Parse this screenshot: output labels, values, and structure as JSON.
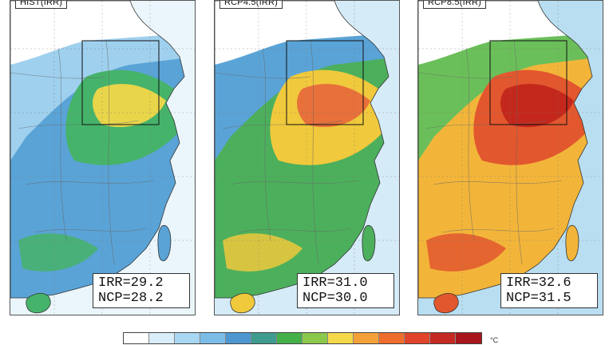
{
  "panels": [
    {
      "title": "HIST(IRR)",
      "irr_label": "IRR=29.2",
      "ncp_label": "NCP=28.2",
      "palette": {
        "ocean": "#d9eefa",
        "low": "#9fd0ee",
        "mid": "#5aa3d6",
        "high": "#46b36a",
        "hot": "#e9d54a"
      }
    },
    {
      "title": "RCP4.5(IRR)",
      "irr_label": "IRR=31.0",
      "ncp_label": "NCP=30.0",
      "palette": {
        "ocean": "#b3daf2",
        "low": "#5aa3d6",
        "mid": "#4caf5c",
        "high": "#f0c93c",
        "hot": "#e8703a"
      }
    },
    {
      "title": "RCP8.5(IRR)",
      "irr_label": "IRR=32.6",
      "ncp_label": "NCP=31.5",
      "palette": {
        "ocean": "#7fc2e6",
        "low": "#6bbf5a",
        "mid": "#f2b53a",
        "high": "#e2572e",
        "hot": "#c4281c"
      }
    }
  ],
  "colorbar": {
    "colors": [
      "#ffffff",
      "#d9eefa",
      "#a9d6f2",
      "#7cbde8",
      "#4d97d1",
      "#3f9a8f",
      "#43b04a",
      "#8cc84b",
      "#f5d84a",
      "#f4a13a",
      "#ef6d2c",
      "#e0442a",
      "#c42a22",
      "#a8161c"
    ],
    "unit": "°C"
  }
}
